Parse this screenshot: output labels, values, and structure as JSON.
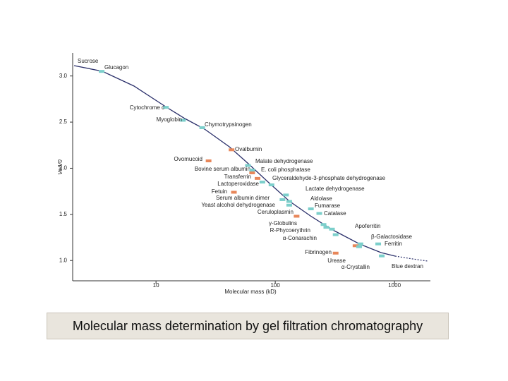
{
  "chart_data": {
    "type": "scatter",
    "log_x": true,
    "xlabel": "Molecular mass (kD)",
    "ylabel": "Ve/V0",
    "xlim": [
      2,
      2000
    ],
    "ylim": [
      0.78,
      3.25
    ],
    "xticks": [
      10,
      100,
      1000
    ],
    "yticks": [
      {
        "value": 3,
        "label": "3.0"
      },
      {
        "value": 2.5,
        "label": "2.5"
      },
      {
        "value": 2,
        "label": "2.0"
      },
      {
        "value": 1.5,
        "label": "1.5"
      },
      {
        "value": 1,
        "label": "1.0"
      }
    ],
    "annotations": [
      "Sucrose"
    ],
    "points": [
      {
        "label": "Glucagon",
        "x": 3.5,
        "y": 3.05,
        "color": "#7ccfcb"
      },
      {
        "label": "Cytochrome c",
        "x": 12.1,
        "y": 2.66,
        "color": "#7ccfcb"
      },
      {
        "label": "Myoglobin",
        "x": 16.8,
        "y": 2.52,
        "color": "#7ccfcb"
      },
      {
        "label": "Chymotrypsinogen",
        "x": 24.4,
        "y": 2.44,
        "color": "#7ccfcb"
      },
      {
        "label": "Ovalbumin",
        "x": 43,
        "y": 2.2,
        "color": "#e8875a"
      },
      {
        "label": "Ovomucoid",
        "x": 27.6,
        "y": 2.08,
        "color": "#e8875a"
      },
      {
        "label": "Malate dehydrogenase",
        "x": 59,
        "y": 2.03,
        "color": "#7ccfcb"
      },
      {
        "label": "Bovine serum albumin",
        "x": 64,
        "y": 1.95,
        "color": "#e8875a"
      },
      {
        "label": "E. coli phosphatase",
        "x": 64,
        "y": 1.98,
        "color": "#7ccfcb"
      },
      {
        "label": "Transferrin",
        "x": 71,
        "y": 1.89,
        "color": "#e8875a"
      },
      {
        "label": "Glyceraldehyde-3-phosphate dehydrogenase",
        "x": 93,
        "y": 1.82,
        "color": "#7ccfcb"
      },
      {
        "label": "Lactoperoxidase",
        "x": 78,
        "y": 1.85,
        "color": "#7ccfcb"
      },
      {
        "label": "Lactate dehydrogenase",
        "x": 123,
        "y": 1.71,
        "color": "#7ccfcb"
      },
      {
        "label": "Fetuin",
        "x": 45,
        "y": 1.74,
        "color": "#e8875a"
      },
      {
        "label": "Serum albumin dimer",
        "x": 115,
        "y": 1.66,
        "color": "#7ccfcb"
      },
      {
        "label": "Aldolase",
        "x": 131,
        "y": 1.64,
        "color": "#7ccfcb"
      },
      {
        "label": "Yeast alcohol dehydrogenase",
        "x": 131,
        "y": 1.6,
        "color": "#7ccfcb"
      },
      {
        "label": "Fumarase",
        "x": 199,
        "y": 1.56,
        "color": "#7ccfcb"
      },
      {
        "label": "Catalase",
        "x": 234,
        "y": 1.51,
        "color": "#7ccfcb"
      },
      {
        "label": "Ceruloplasmin",
        "x": 151,
        "y": 1.48,
        "color": "#e8875a"
      },
      {
        "label": "γ-Globulins",
        "x": 254,
        "y": 1.39,
        "color": "#7ccfcb"
      },
      {
        "label": "Apoferritin",
        "x": 299,
        "y": 1.34,
        "color": "#7ccfcb"
      },
      {
        "label": "R-Phycoerythrin",
        "x": 268,
        "y": 1.36,
        "color": "#7ccfcb"
      },
      {
        "label": "β-Galactosidase",
        "x": 518,
        "y": 1.18,
        "color": "#7ccfcb"
      },
      {
        "label": "α-Conarachin",
        "x": 321,
        "y": 1.28,
        "color": "#7ccfcb"
      },
      {
        "label": "Ferritin",
        "x": 730,
        "y": 1.18,
        "color": "#7ccfcb"
      },
      {
        "label": "Fibrinogen",
        "x": 321,
        "y": 1.08,
        "color": "#e8875a"
      },
      {
        "label": "Urease",
        "x": 471,
        "y": 1.16,
        "color": "#e8875a"
      },
      {
        "label": "α-Crystallin",
        "x": 505,
        "y": 1.15,
        "color": "#7ccfcb"
      },
      {
        "label": "Blue dextran",
        "x": 782,
        "y": 1.05,
        "color": "#7ccfcb"
      }
    ]
  },
  "caption": "Molecular mass determination by gel filtration chromatography"
}
